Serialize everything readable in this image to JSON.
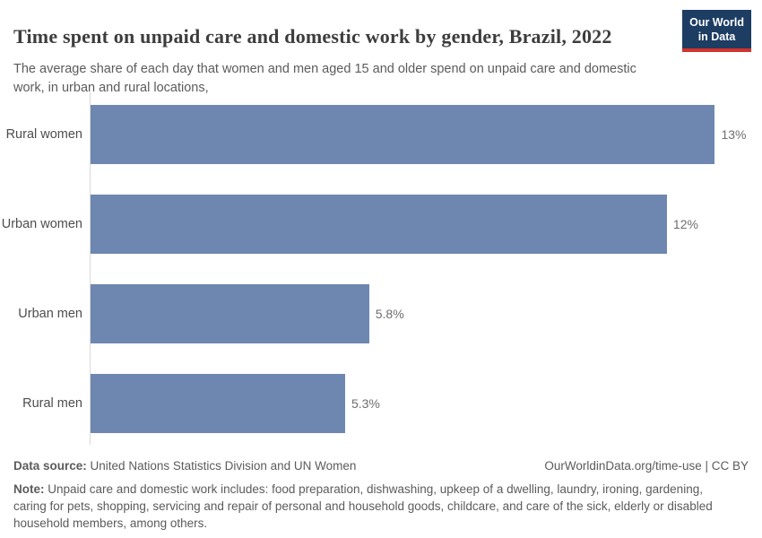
{
  "header": {
    "title": "Time spent on unpaid care and domestic work by gender, Brazil, 2022",
    "subtitle": "The average share of each day that women and men aged 15 and older spend on unpaid care and domestic work, in urban and rural locations,",
    "logo": {
      "line1": "Our World",
      "line2": "in Data"
    }
  },
  "chart_data": {
    "type": "bar",
    "orientation": "horizontal",
    "title": "Time spent on unpaid care and domestic work by gender, Brazil, 2022",
    "categories": [
      "Rural women",
      "Urban women",
      "Urban men",
      "Rural men"
    ],
    "values": [
      13,
      12,
      5.8,
      5.3
    ],
    "value_labels": [
      "13%",
      "12%",
      "5.8%",
      "5.3%"
    ],
    "unit": "%",
    "xlim": [
      0,
      13.7
    ],
    "grid": false,
    "legend": false,
    "bar_color": "#6e87b0"
  },
  "footer": {
    "source_label": "Data source:",
    "source_text": "United Nations Statistics Division and UN Women",
    "attribution": "OurWorldinData.org/time-use | CC BY",
    "note_label": "Note:",
    "note_text": "Unpaid care and domestic work includes: food preparation, dishwashing, upkeep of a dwelling, laundry, ironing, gardening, caring for pets, shopping, servicing and repair of personal and household goods, childcare, and care of the sick, elderly or disabled household members, among others."
  },
  "colors": {
    "bar": "#6e87b0",
    "title_text": "#3d3d3d",
    "muted_text": "#5b5b5b",
    "category_label": "#4d4d4d",
    "value_label": "#6e6e6e",
    "axis_line": "#d9d9d9",
    "logo_background": "#1d3d63",
    "logo_accent": "#d2332c"
  }
}
